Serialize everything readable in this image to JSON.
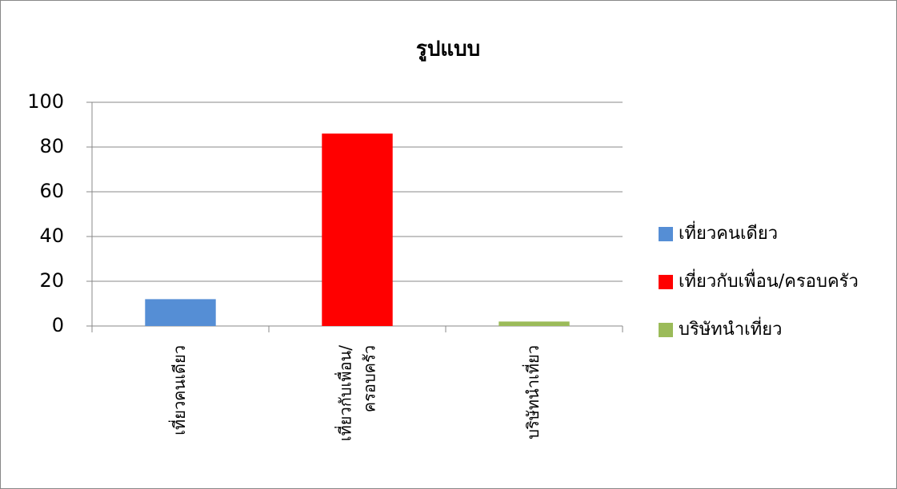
{
  "chart_data": {
    "type": "bar",
    "title": "รูปแบบ",
    "categories": [
      "เที่ยวคนเดียว",
      "เที่ยวกับเพื่อน/ครอบครัว",
      "บริษัทนำเที่ยว"
    ],
    "values": [
      12,
      86,
      2
    ],
    "colors": [
      "#558ed5",
      "#ff0000",
      "#9bbb59"
    ],
    "ylim": [
      0,
      100
    ],
    "yticks": [
      0,
      20,
      40,
      60,
      80,
      100
    ],
    "grid": true,
    "legend": "right"
  }
}
